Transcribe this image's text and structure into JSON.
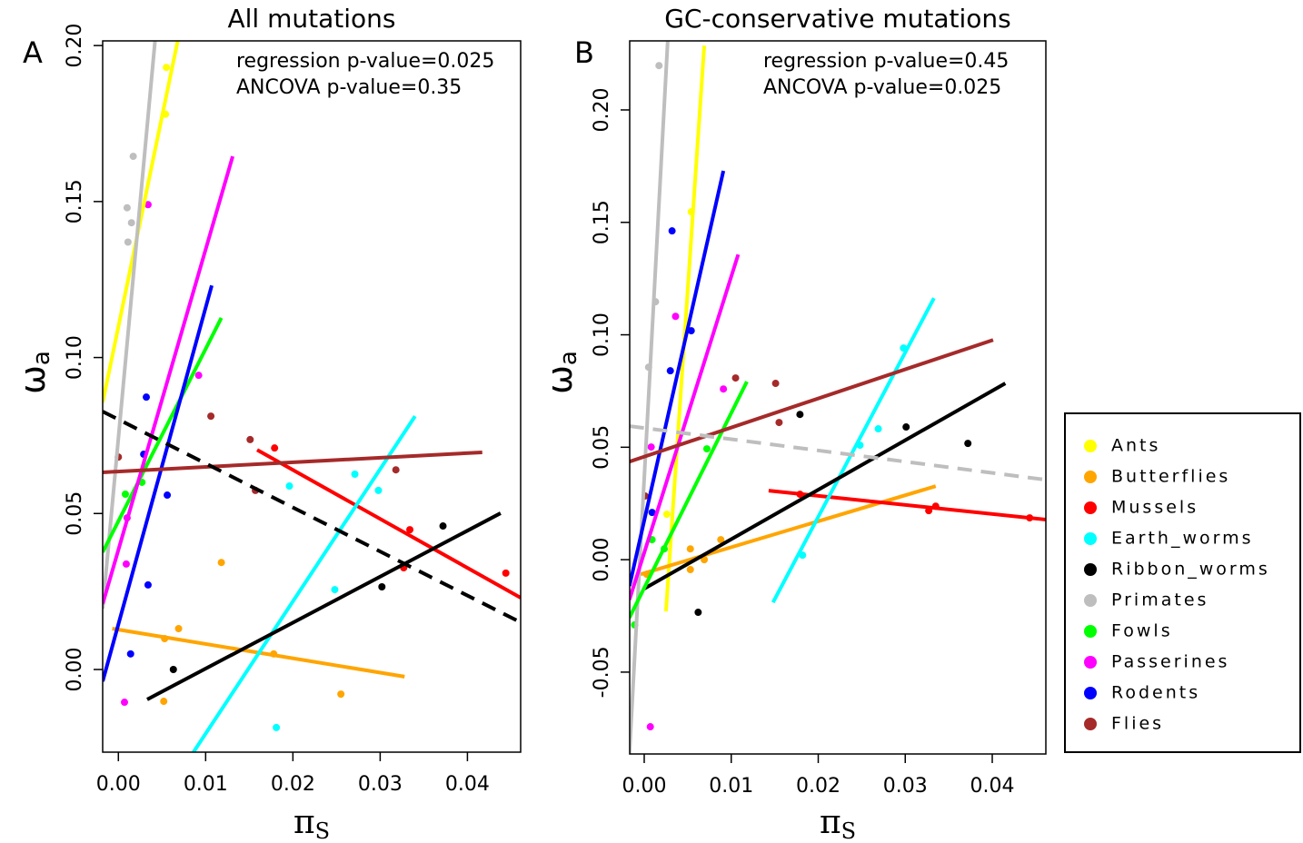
{
  "chart_data": [
    {
      "type": "scatter",
      "panel": "A",
      "title": "All mutations",
      "x_label": {
        "main": "π",
        "sub": "S"
      },
      "y_label": {
        "main": "ω",
        "sub": "a"
      },
      "annotations": [
        "regression p-value=0.025",
        "ANCOVA p-value=0.35"
      ],
      "xlim": [
        -0.0018,
        0.0461
      ],
      "ylim": [
        -0.0265,
        0.2015
      ],
      "xticks": [
        {
          "value": 0,
          "label": "0.00"
        },
        {
          "value": 0.01,
          "label": "0.01"
        },
        {
          "value": 0.02,
          "label": "0.02"
        },
        {
          "value": 0.03,
          "label": "0.03"
        },
        {
          "value": 0.04,
          "label": "0.04"
        }
      ],
      "yticks": [
        {
          "value": 0,
          "label": "0.00"
        },
        {
          "value": 0.05,
          "label": "0.05"
        },
        {
          "value": 0.1,
          "label": "0.10"
        },
        {
          "value": 0.15,
          "label": "0.15"
        },
        {
          "value": 0.2,
          "label": "0.20"
        }
      ],
      "series": [
        {
          "color": "#ffff00",
          "x": [
            0.0055,
            0.0054
          ],
          "y": [
            0.193,
            0.178
          ],
          "fit": {
            "x": [
              -0.0018,
              0.0068
            ],
            "y": [
              0.0856,
              0.2015
            ]
          }
        },
        {
          "color": "#ffa500",
          "x": [
            0.0053,
            0.0069,
            0.0052,
            0.0118,
            0.0178,
            0.0255
          ],
          "y": [
            0.0099,
            0.0131,
            -0.0102,
            0.0343,
            0.005,
            -0.0079
          ],
          "fit": {
            "x": [
              -0.0007,
              0.0328
            ],
            "y": [
              0.0131,
              -0.0023
            ]
          }
        },
        {
          "color": "#ff0000",
          "x": [
            0.0179,
            0.0334,
            0.0327,
            0.0444
          ],
          "y": [
            0.071,
            0.0448,
            0.0326,
            0.0309
          ],
          "fit": {
            "x": [
              0.0159,
              0.0461
            ],
            "y": [
              0.0704,
              0.023
            ]
          }
        },
        {
          "color": "#00ffff",
          "x": [
            0.0196,
            0.0271,
            0.0298,
            0.0248,
            0.0181
          ],
          "y": [
            0.0588,
            0.0626,
            0.0574,
            0.0256,
            -0.0186
          ],
          "fit": {
            "x": [
              0.0086,
              0.034
            ],
            "y": [
              -0.0265,
              0.0812
            ]
          }
        },
        {
          "color": "#000000",
          "x": [
            0.0063,
            0.0372,
            0.0302
          ],
          "y": [
            0,
            0.046,
            0.0265
          ],
          "fit": {
            "x": [
              0.0033,
              0.0438
            ],
            "y": [
              -0.0096,
              0.0501
            ]
          }
        },
        {
          "color": "#bebebe",
          "x": [
            0.0017,
            0.0015,
            0.001,
            0.0011
          ],
          "y": [
            0.1645,
            0.1432,
            0.148,
            0.137
          ],
          "fit": {
            "x": [
              -0.0018,
              0.0042
            ],
            "y": [
              0.0195,
              0.2015
            ]
          }
        },
        {
          "color": "#00ff00",
          "x": [
            0.0027,
            0.0008
          ],
          "y": [
            0.06,
            0.0562
          ],
          "fit": {
            "x": [
              -0.0018,
              0.0118
            ],
            "y": [
              0.0376,
              0.1127
            ]
          }
        },
        {
          "color": "#ff00ff",
          "x": [
            0.0007,
            0.0034,
            0.0092,
            0.0009,
            0.001
          ],
          "y": [
            -0.0105,
            0.149,
            0.0943,
            0.0338,
            0.0486
          ],
          "fit": {
            "x": [
              -0.0018,
              0.0131
            ],
            "y": [
              0.021,
              0.1645
            ]
          }
        },
        {
          "color": "#0000ff",
          "x": [
            0.0032,
            0.0056,
            0.0034,
            0.0014,
            0.0029
          ],
          "y": [
            0.0873,
            0.0559,
            0.0271,
            0.005,
            0.069
          ],
          "fit": {
            "x": [
              -0.0018,
              0.0107
            ],
            "y": [
              -0.0038,
              0.1231
            ]
          }
        },
        {
          "color": "#a52a2a",
          "x": [
            0,
            0.0106,
            0.0151,
            0.0157,
            0.0318
          ],
          "y": [
            0.0681,
            0.0812,
            0.0737,
            0.0574,
            0.064
          ],
          "fit": {
            "x": [
              -0.0018,
              0.0417
            ],
            "y": [
              0.0632,
              0.0696
            ]
          }
        }
      ],
      "overall_fit": {
        "color": "#000000",
        "dashed": true,
        "x": [
          -0.0018,
          0.0461
        ],
        "y": [
          0.0827,
          0.0151
        ]
      }
    },
    {
      "type": "scatter",
      "panel": "B",
      "title": "GC-conservative mutations",
      "x_label": {
        "main": "π",
        "sub": "S"
      },
      "y_label": {
        "main": "ω",
        "sub": "a"
      },
      "annotations": [
        "regression p-value=0.45",
        "ANCOVA p-value=0.025"
      ],
      "xlim": [
        -0.00167,
        0.04616
      ],
      "ylim": [
        -0.0864,
        0.2307
      ],
      "xticks": [
        {
          "value": 0,
          "label": "0.00"
        },
        {
          "value": 0.01,
          "label": "0.01"
        },
        {
          "value": 0.02,
          "label": "0.02"
        },
        {
          "value": 0.03,
          "label": "0.03"
        },
        {
          "value": 0.04,
          "label": "0.04"
        }
      ],
      "yticks": [
        {
          "value": -0.05,
          "label": "-0.05"
        },
        {
          "value": 0,
          "label": "0.00"
        },
        {
          "value": 0.05,
          "label": "0.05"
        },
        {
          "value": 0.1,
          "label": "0.10"
        },
        {
          "value": 0.15,
          "label": "0.15"
        },
        {
          "value": 0.2,
          "label": "0.20"
        }
      ],
      "series": [
        {
          "color": "#ffff00",
          "x": [
            0.0054,
            0.0026
          ],
          "y": [
            0.1547,
            0.0202
          ],
          "fit": {
            "x": [
              0.0025,
              0.0069
            ],
            "y": [
              -0.023,
              0.2286
            ]
          }
        },
        {
          "color": "#ffa500",
          "x": [
            0.0003,
            0.0053,
            0.0053,
            0.0069,
            0.0088
          ],
          "y": [
            -0.0065,
            0.0048,
            -0.0044,
            0,
            0.0089
          ],
          "fit": {
            "x": [
              -0.0004,
              0.0335
            ],
            "y": [
              -0.0065,
              0.0327
            ]
          }
        },
        {
          "color": "#ff0000",
          "x": [
            0.0179,
            0.0335,
            0.0327,
            0.0443
          ],
          "y": [
            0.0291,
            0.0238,
            0.0218,
            0.0186
          ],
          "fit": {
            "x": [
              0.0143,
              0.0462
            ],
            "y": [
              0.0307,
              0.0178
            ]
          }
        },
        {
          "color": "#00ffff",
          "x": [
            0.0269,
            0.0298,
            0.0182,
            0.0248
          ],
          "y": [
            0.0582,
            0.0941,
            0.002,
            0.0509
          ],
          "fit": {
            "x": [
              0.0148,
              0.0333
            ],
            "y": [
              -0.019,
              0.1163
            ]
          }
        },
        {
          "color": "#000000",
          "x": [
            0.0179,
            0.0301,
            0.0372,
            0.0062
          ],
          "y": [
            0.0646,
            0.059,
            0.0517,
            -0.0234
          ],
          "fit": {
            "x": [
              0,
              0.0415
            ],
            "y": [
              -0.0129,
              0.0784
            ]
          }
        },
        {
          "color": "#bebebe",
          "x": [
            0.0017,
            0.0013,
            0.0005
          ],
          "y": [
            0.2197,
            0.1147,
            0.0856
          ],
          "fit": {
            "x": [
              -0.0017,
              0.0027
            ],
            "y": [
              -0.0864,
              0.2307
            ]
          }
        },
        {
          "color": "#00ff00",
          "x": [
            -0.0011,
            0.0023,
            0.0072,
            0.0009
          ],
          "y": [
            -0.029,
            0.0048,
            0.0493,
            0.0089
          ],
          "fit": {
            "x": [
              -0.0017,
              0.0118
            ],
            "y": [
              -0.0258,
              0.0792
            ]
          }
        },
        {
          "color": "#ff00ff",
          "x": [
            0.0007,
            0.0036,
            0.0091,
            0.0008
          ],
          "y": [
            -0.0743,
            0.1082,
            0.0759,
            0.0501
          ],
          "fit": {
            "x": [
              -0.0017,
              0.0108
            ],
            "y": [
              -0.0178,
              0.1357
            ]
          }
        },
        {
          "color": "#0000ff",
          "x": [
            0.0032,
            0.0054,
            0.003,
            0.0009
          ],
          "y": [
            0.1462,
            0.1018,
            0.084,
            0.021
          ],
          "fit": {
            "x": [
              -0.0017,
              0.0091
            ],
            "y": [
              -0.0117,
              0.1729
            ]
          }
        },
        {
          "color": "#a52a2a",
          "x": [
            0.0001,
            0.0105,
            0.0151,
            0.0155
          ],
          "y": [
            0.0283,
            0.0808,
            0.0784,
            0.061
          ],
          "fit": {
            "x": [
              -0.0017,
              0.0401
            ],
            "y": [
              0.0436,
              0.0977
            ]
          }
        }
      ],
      "overall_fit": {
        "color": "#bebebe",
        "dashed": true,
        "x": [
          -0.0017,
          0.0462
        ],
        "y": [
          0.0594,
          0.0355
        ]
      }
    }
  ],
  "legend": {
    "entries": [
      {
        "name": "Ants",
        "color": "#ffff00"
      },
      {
        "name": "Butterflies",
        "color": "#ffa500"
      },
      {
        "name": "Mussels",
        "color": "#ff0000"
      },
      {
        "name": "Earth_worms",
        "color": "#00ffff"
      },
      {
        "name": "Ribbon_worms",
        "color": "#000000"
      },
      {
        "name": "Primates",
        "color": "#bebebe"
      },
      {
        "name": "Fowls",
        "color": "#00ff00"
      },
      {
        "name": "Passerines",
        "color": "#ff00ff"
      },
      {
        "name": "Rodents",
        "color": "#0000ff"
      },
      {
        "name": "Flies",
        "color": "#a52a2a"
      }
    ]
  }
}
